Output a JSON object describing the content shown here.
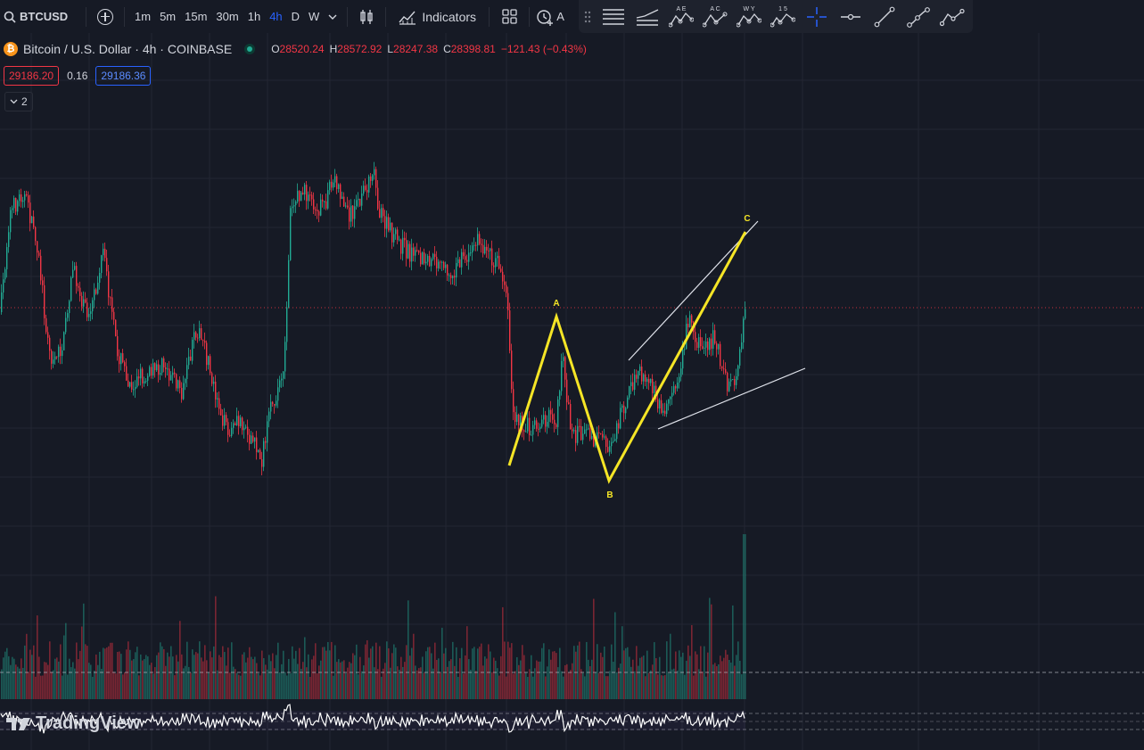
{
  "toolbar": {
    "symbol": "BTCUSD",
    "timeframes": [
      "1m",
      "5m",
      "15m",
      "30m",
      "1h",
      "4h",
      "D",
      "W"
    ],
    "active_timeframe": "4h",
    "indicators_label": "Indicators",
    "hidden_alert_label": "A"
  },
  "drawing_tools": [
    "horizontal-lines-icon",
    "parallel-lines-icon",
    "abcde-pattern-icon",
    "abc-pattern-icon",
    "wxy-pattern-icon",
    "impulse-wave-icon",
    "crosshair-icon",
    "horizontal-ray-icon",
    "trend-line-icon",
    "curve-icon",
    "polyline-icon"
  ],
  "drawing_tool_labels": {
    "abcde": "A E",
    "abc": "A C",
    "wxy": "W Y",
    "impulse": "1 5"
  },
  "legend": {
    "title": "Bitcoin / U.S. Dollar · 4h · COINBASE",
    "open_label": "O",
    "open": "28520.24",
    "high_label": "H",
    "high": "28572.92",
    "low_label": "L",
    "low": "28247.38",
    "close_label": "C",
    "close": "28398.81",
    "change": "−121.43 (−0.43%)"
  },
  "quote": {
    "sell": "29186.20",
    "spread": "0.16",
    "buy": "29186.36"
  },
  "indicator_toggle": "2",
  "wave_labels": {
    "a": "A",
    "b": "B",
    "c": "C"
  },
  "branding": "TradingView",
  "colors": {
    "background": "#161a25",
    "grid": "#232632",
    "up": "#22ab94",
    "down": "#f23645",
    "pattern": "#f5e526",
    "channel": "#e0e3eb",
    "accent": "#2962ff"
  }
}
